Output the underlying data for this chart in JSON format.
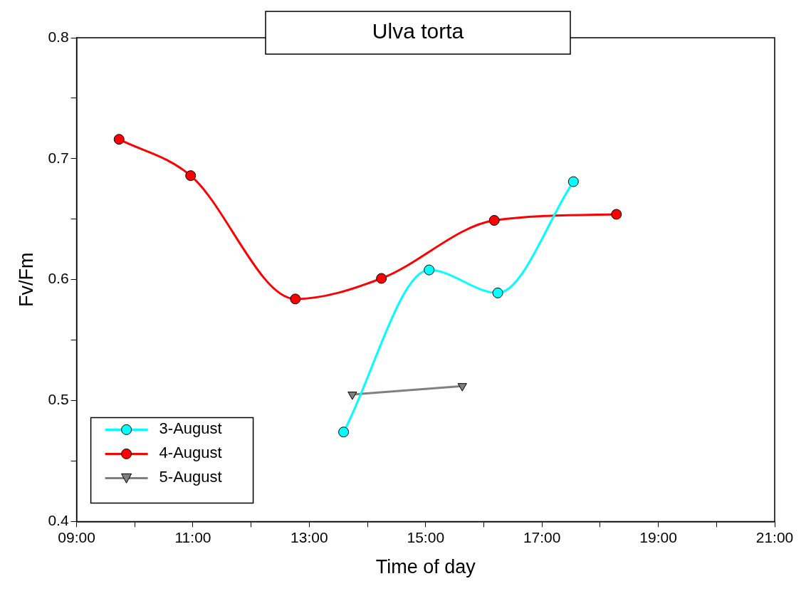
{
  "chart_data": {
    "type": "line",
    "title": "Ulva torta",
    "xlabel": "Time of day",
    "ylabel": "Fv/Fm",
    "xlim": [
      9,
      21
    ],
    "xticks": [
      {
        "value": 9,
        "label": "09:00"
      },
      {
        "value": 10,
        "label": null
      },
      {
        "value": 11,
        "label": "11:00"
      },
      {
        "value": 12,
        "label": null
      },
      {
        "value": 13,
        "label": "13:00"
      },
      {
        "value": 14,
        "label": null
      },
      {
        "value": 15,
        "label": "15:00"
      },
      {
        "value": 16,
        "label": null
      },
      {
        "value": 17,
        "label": "17:00"
      },
      {
        "value": 18,
        "label": null
      },
      {
        "value": 19,
        "label": "19:00"
      },
      {
        "value": 20,
        "label": null
      },
      {
        "value": 21,
        "label": "21:00"
      }
    ],
    "ylim": [
      0.4,
      0.8
    ],
    "yticks": [
      0.4,
      {
        "value": 0.45,
        "label": null
      },
      0.5,
      {
        "value": 0.55,
        "label": null
      },
      0.6,
      {
        "value": 0.65,
        "label": null
      },
      0.7,
      {
        "value": 0.75,
        "label": null
      },
      0.8
    ],
    "grid": false,
    "legend": "bottom left",
    "series": [
      {
        "name": "3-August",
        "color": "#00ffff",
        "marker": "circle",
        "x": [
          13.59,
          15.06,
          16.24,
          17.54
        ],
        "values": [
          0.474,
          0.608,
          0.589,
          0.681
        ]
      },
      {
        "name": "4-August",
        "color": "#ff0000",
        "marker": "circle",
        "x": [
          9.73,
          10.96,
          12.76,
          14.24,
          16.18,
          18.28
        ],
        "values": [
          0.716,
          0.686,
          0.584,
          0.601,
          0.649,
          0.654
        ]
      },
      {
        "name": "5-August",
        "color": "#808080",
        "marker": "triangle",
        "x": [
          13.74,
          15.63
        ],
        "values": [
          0.505,
          0.512
        ]
      }
    ]
  }
}
